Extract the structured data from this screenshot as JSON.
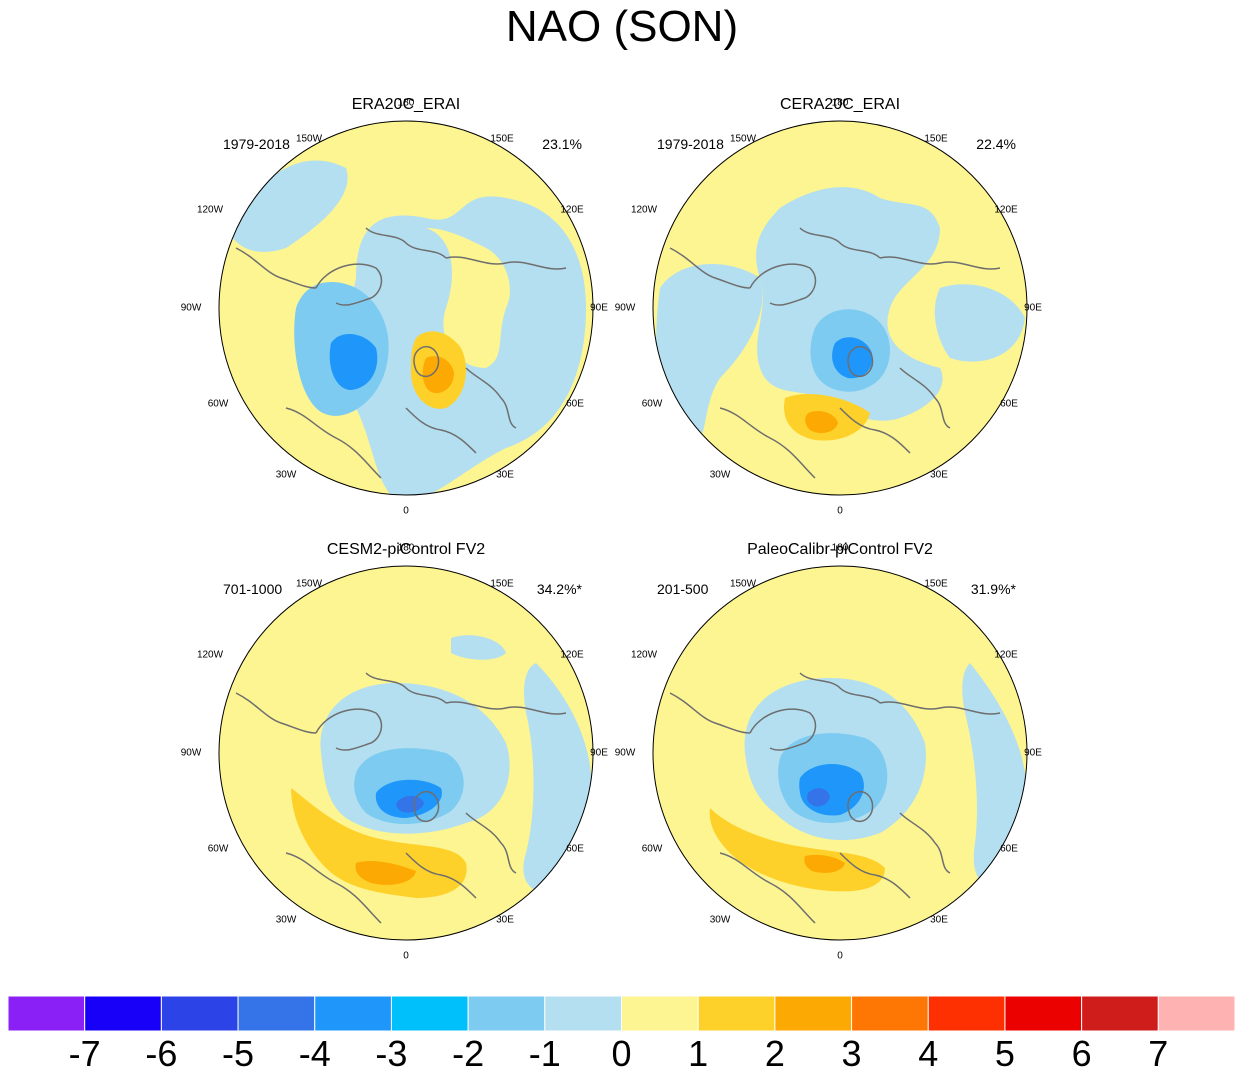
{
  "title": "NAO (SON)",
  "panels": [
    {
      "name": "ERA20C_ERAI",
      "period": "1979-2018",
      "variance": "23.1%"
    },
    {
      "name": "CERA20C_ERAI",
      "period": "1979-2018",
      "variance": "22.4%"
    },
    {
      "name": "CESM2-piControl FV2",
      "period": "701-1000",
      "variance": "34.2%*"
    },
    {
      "name": "PaleoCalibr-piControl FV2",
      "period": "201-500",
      "variance": "31.9%*"
    }
  ],
  "longitude_labels": {
    "top": "180",
    "bottom": "0",
    "w150": "150W",
    "e150": "150E",
    "w120": "120W",
    "e120": "120E",
    "w90": "90W",
    "e90": "90E",
    "w60": "60W",
    "e60": "60E",
    "w30": "30W",
    "e30": "30E"
  },
  "colorbar": {
    "levels": [
      "-7",
      "-6",
      "-5",
      "-4",
      "-3",
      "-2",
      "-1",
      "0",
      "1",
      "2",
      "3",
      "4",
      "5",
      "6",
      "7"
    ],
    "colors": [
      "#8a20f5",
      "#1800f8",
      "#2c43e8",
      "#3474e8",
      "#1f97fa",
      "#00c0fc",
      "#7ecbf2",
      "#b4dff0",
      "#fdf591",
      "#fed12a",
      "#fda903",
      "#fe7604",
      "#fe2f00",
      "#ea0100",
      "#cf1d1c",
      "#ffb2b2"
    ]
  },
  "colors": {
    "pos1": "#fdf591",
    "pos2": "#fed12a",
    "pos3": "#fda903",
    "neg1": "#b4dff0",
    "neg2": "#7ecbf2",
    "neg3": "#1f97fa",
    "neg4": "#3474e8",
    "coast": "#6e6e6e"
  }
}
